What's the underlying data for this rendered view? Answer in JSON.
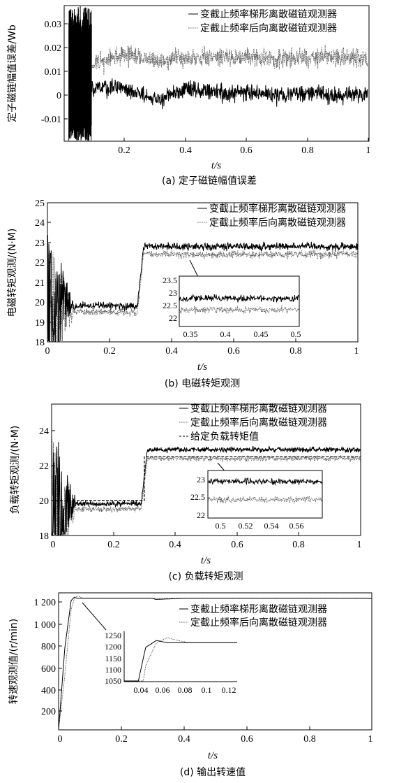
{
  "panels": [
    {
      "caption": "(a) 定子磁链幅值误差",
      "ylabel": "定子磁链幅值误差/Wb",
      "xlabel": "t/s",
      "chart_data": {
        "type": "line",
        "xlim": [
          0,
          1
        ],
        "ylim": [
          -0.018,
          0.035
        ],
        "xticks": [
          "0.2",
          "0.4",
          "0.6",
          "0.8",
          "1"
        ],
        "yticks": [
          "-0.01",
          "0",
          "0.01",
          "0.02",
          "0.03"
        ],
        "legend_position": "top-right",
        "series": [
          {
            "name": "变截止频率梯形离散磁链观测器",
            "style": "solid",
            "x": [
              0.1,
              0.2,
              0.3,
              0.4,
              0.5,
              0.6,
              0.7,
              0.8,
              0.9,
              1.0
            ],
            "values": [
              0.003,
              0.003,
              -0.002,
              0.002,
              0.001,
              0.001,
              0.0,
              0.001,
              0.0,
              0.0
            ]
          },
          {
            "name": "定截止频率后向离散磁链观测器",
            "style": "dotted",
            "x": [
              0.1,
              0.2,
              0.3,
              0.4,
              0.5,
              0.6,
              0.7,
              0.8,
              0.9,
              1.0
            ],
            "values": [
              0.012,
              0.016,
              0.013,
              0.015,
              0.015,
              0.015,
              0.014,
              0.015,
              0.015,
              0.014
            ]
          }
        ]
      }
    },
    {
      "caption": "(b) 电磁转矩观测",
      "ylabel": "电磁转矩观测/(N·M)",
      "xlabel": "t/s",
      "chart_data": {
        "type": "line",
        "xlim": [
          0,
          1
        ],
        "ylim": [
          18,
          25
        ],
        "xticks": [
          "0",
          "0.2",
          "0.4",
          "0.6",
          "0.8",
          "1"
        ],
        "yticks": [
          "18",
          "19",
          "20",
          "21",
          "22",
          "23",
          "24",
          "25"
        ],
        "legend_position": "top-right",
        "series": [
          {
            "name": "变截止频率梯形离散磁链观测器",
            "style": "solid",
            "x": [
              0.1,
              0.2,
              0.29,
              0.31,
              0.5,
              0.7,
              1.0
            ],
            "values": [
              19.8,
              19.8,
              19.8,
              22.8,
              22.8,
              22.8,
              22.8
            ]
          },
          {
            "name": "定截止频率后向离散磁链观测器",
            "style": "dotted",
            "x": [
              0.1,
              0.2,
              0.29,
              0.31,
              0.5,
              0.7,
              1.0
            ],
            "values": [
              19.5,
              19.5,
              19.5,
              22.4,
              22.4,
              22.4,
              22.4
            ]
          }
        ],
        "inset": {
          "xlim": [
            0.34,
            0.51
          ],
          "ylim": [
            21.8,
            23.6
          ],
          "xticks": [
            "0.35",
            "0.4",
            "0.45",
            "0.5"
          ],
          "yticks": [
            "22",
            "22.5",
            "23",
            "23.5"
          ]
        }
      }
    },
    {
      "caption": "(c) 负载转矩观测",
      "ylabel": "负载转矩观测/(N·M)",
      "xlabel": "t/s",
      "chart_data": {
        "type": "line",
        "xlim": [
          0,
          1
        ],
        "ylim": [
          18,
          25.5
        ],
        "xticks": [
          "0",
          "0.2",
          "0.4",
          "0.6",
          "0.8",
          "1"
        ],
        "yticks": [
          "18",
          "20",
          "22",
          "24"
        ],
        "legend_position": "top-right",
        "series": [
          {
            "name": "变截止频率梯形离散磁链观测器",
            "style": "solid",
            "x": [
              0.1,
              0.2,
              0.29,
              0.31,
              0.5,
              0.7,
              1.0
            ],
            "values": [
              19.8,
              19.8,
              19.8,
              22.9,
              22.9,
              22.9,
              22.9
            ]
          },
          {
            "name": "定截止频率后向离散磁链观测器",
            "style": "dotted",
            "x": [
              0.1,
              0.2,
              0.29,
              0.31,
              0.5,
              0.7,
              1.0
            ],
            "values": [
              19.5,
              19.5,
              19.5,
              22.4,
              22.4,
              22.4,
              22.4
            ]
          },
          {
            "name": "给定负载转矩值",
            "style": "dashed",
            "x": [
              0.0,
              0.3,
              0.3,
              1.0
            ],
            "values": [
              20,
              20,
              22.5,
              22.5
            ]
          }
        ],
        "inset": {
          "xlim": [
            0.49,
            0.58
          ],
          "ylim": [
            21.9,
            23.2
          ],
          "xticks": [
            "0.5",
            "0.52",
            "0.54",
            "0.56"
          ],
          "yticks": [
            "22",
            "22.5",
            "23"
          ]
        }
      }
    },
    {
      "caption": "(d) 输出转速值",
      "ylabel": "转速观测值/(r/min)",
      "xlabel": "t/s",
      "chart_data": {
        "type": "line",
        "xlim": [
          0,
          1
        ],
        "ylim": [
          0,
          1250
        ],
        "xticks": [
          "0",
          "0.2",
          "0.4",
          "0.6",
          "0.8",
          "1"
        ],
        "yticks": [
          "200",
          "400",
          "600",
          "800",
          "1 000",
          "1 200"
        ],
        "legend_position": "top-right",
        "series": [
          {
            "name": "变截止频率梯形离散磁链观测器",
            "style": "solid",
            "x": [
              0,
              0.02,
              0.04,
              0.05,
              0.06,
              0.08,
              0.1,
              0.12,
              0.3,
              0.31,
              0.4,
              1.0
            ],
            "values": [
              0,
              750,
              1180,
              1210,
              1200,
              1200,
              1200,
              1200,
              1200,
              1190,
              1200,
              1200
            ]
          },
          {
            "name": "定截止频率后向离散磁链观测器",
            "style": "dotted",
            "x": [
              0,
              0.02,
              0.04,
              0.05,
              0.06,
              0.07,
              0.08,
              0.1,
              0.12,
              1.0
            ],
            "values": [
              0,
              500,
              1100,
              1200,
              1222,
              1210,
              1200,
              1200,
              1200,
              1200
            ]
          }
        ],
        "inset": {
          "xlim": [
            0.02,
            0.125
          ],
          "ylim": [
            1030,
            1250
          ],
          "xticks": [
            "0.04",
            "0.06",
            "0.08",
            "0.1",
            "0.12"
          ],
          "yticks": [
            "1050",
            "1100",
            "1150",
            "1200",
            "1250"
          ]
        }
      }
    }
  ]
}
